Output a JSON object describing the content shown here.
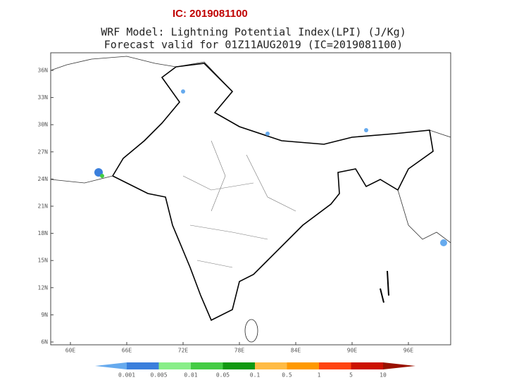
{
  "header": {
    "label": "IC: 2019081100"
  },
  "title": {
    "line1": "WRF Model: Lightning Potential Index(LPI) (J/Kg)",
    "line2": "Forecast valid for 01Z11AUG2019 (IC=2019081100)"
  },
  "lat_labels": [
    "36N",
    "33N",
    "30N",
    "27N",
    "24N",
    "21N",
    "18N",
    "15N",
    "12N",
    "9N",
    "6N"
  ],
  "lon_labels": [
    "60E",
    "66E",
    "72E",
    "78E",
    "84E",
    "90E",
    "96E"
  ],
  "colorbar": {
    "labels": [
      "0.001",
      "0.005",
      "0.01",
      "0.05",
      "0.1",
      "0.5",
      "1",
      "5",
      "10"
    ]
  }
}
